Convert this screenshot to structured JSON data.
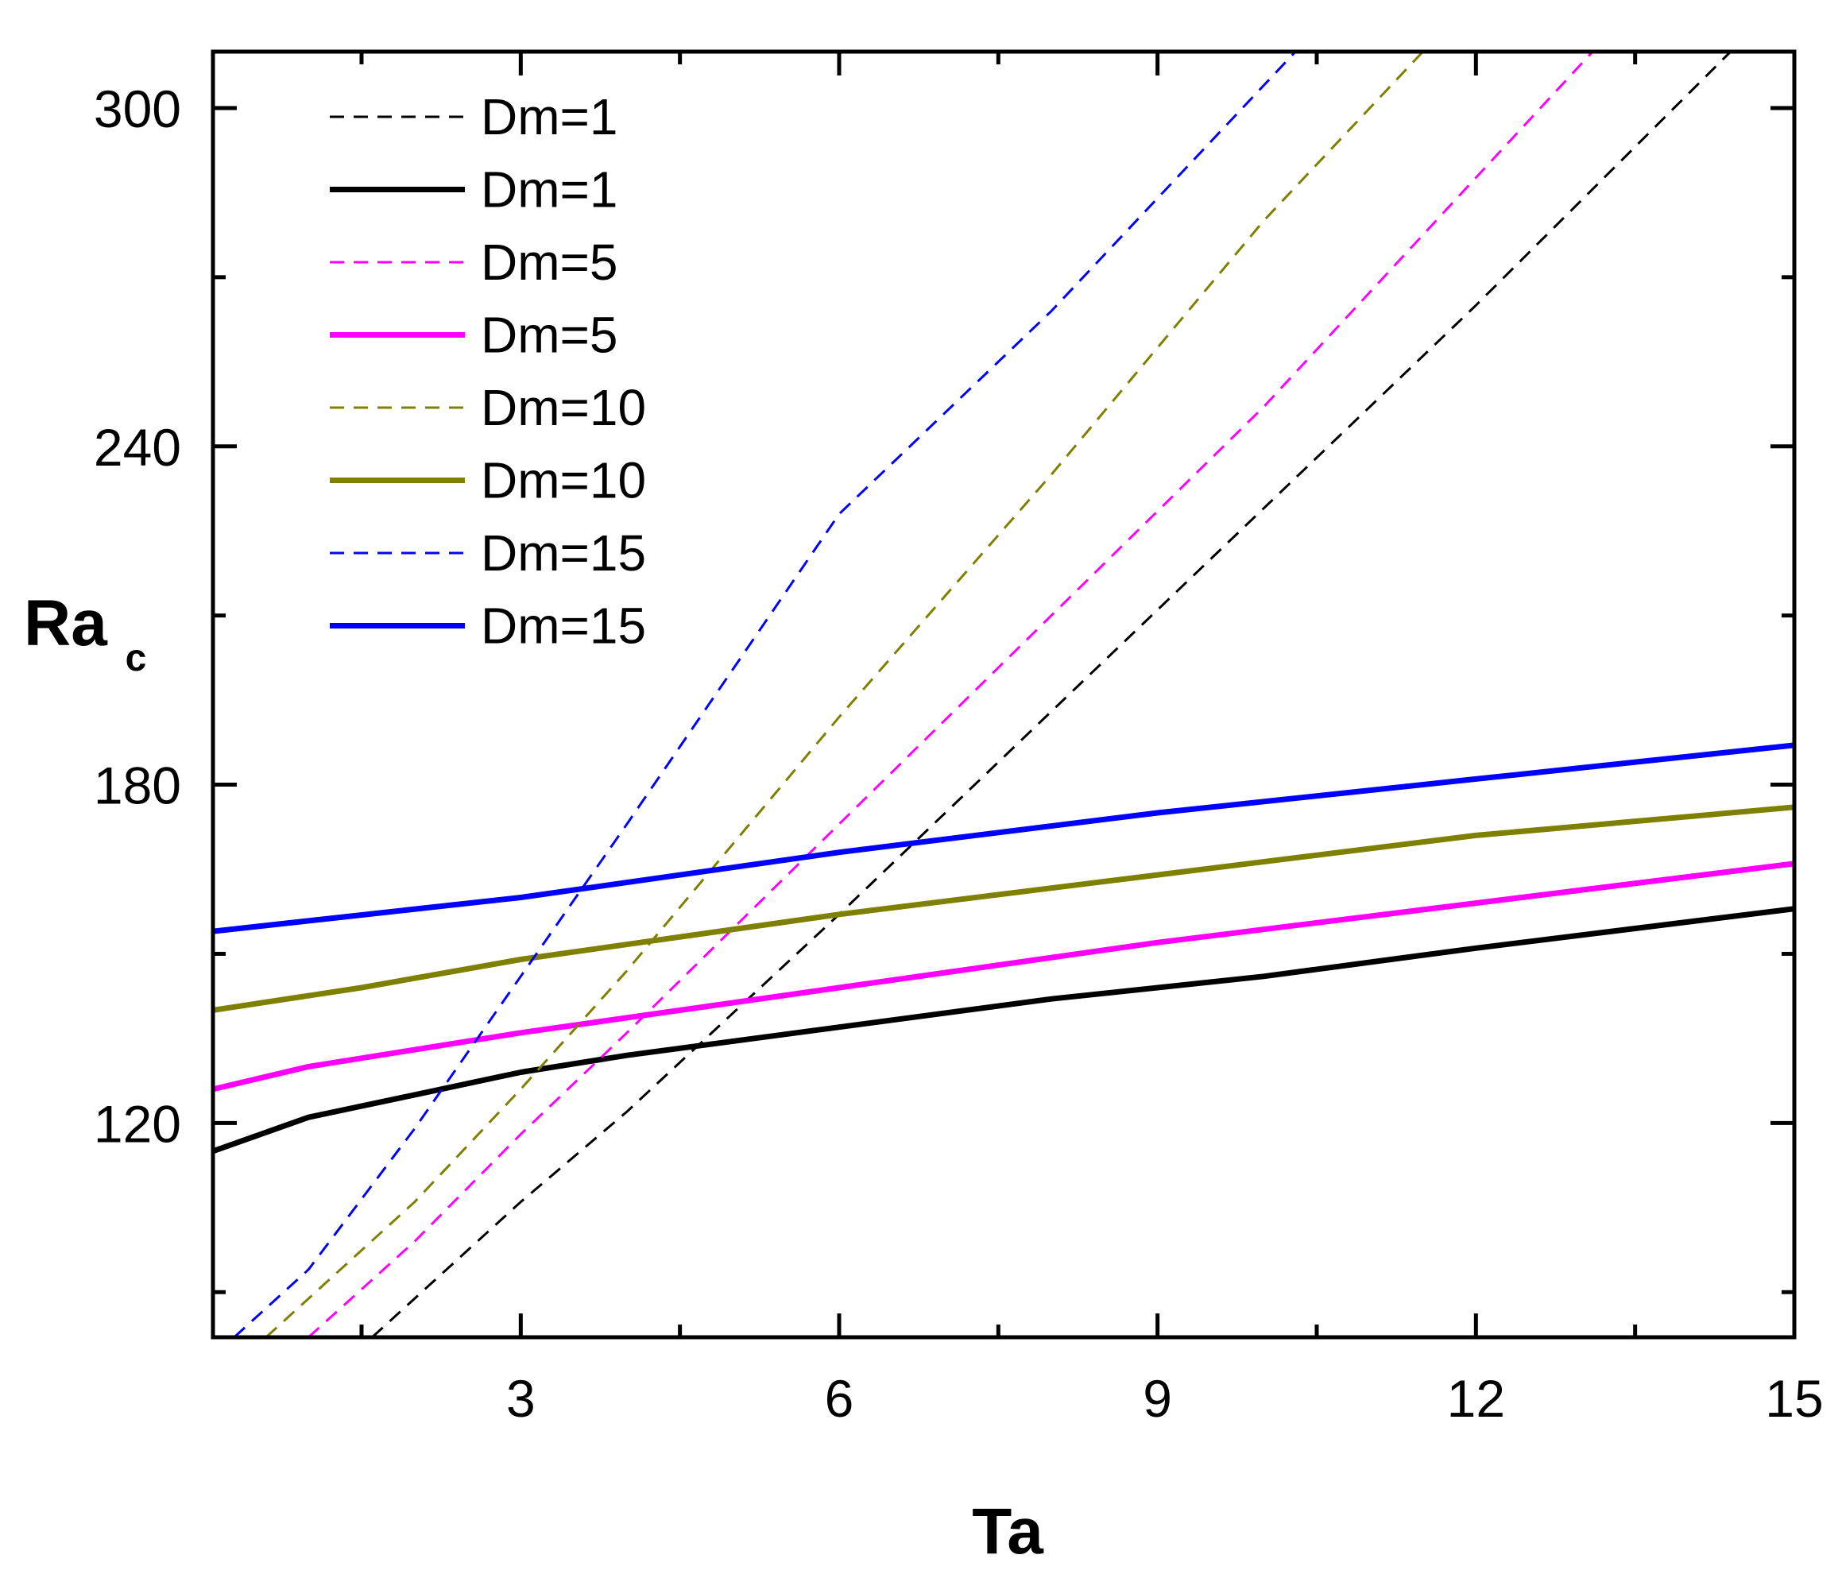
{
  "chart_data": {
    "type": "line",
    "title": "",
    "xlabel": "Ta",
    "ylabel": "Ra",
    "ylabel_sub": "c",
    "xlim": [
      0.1,
      15
    ],
    "ylim": [
      82,
      310
    ],
    "xticks": [
      3,
      6,
      9,
      12,
      15
    ],
    "xtick_labels": [
      "3",
      "6",
      "9",
      "12",
      "15"
    ],
    "yticks": [
      120,
      180,
      240,
      300
    ],
    "ytick_labels": [
      "120",
      "180",
      "240",
      "300"
    ],
    "grid": false,
    "legend_position": "top-left",
    "series": [
      {
        "name": "Dm=1",
        "style": "dashed",
        "color": "#000000",
        "x": [
          1.6,
          3,
          4,
          6,
          8,
          10,
          12,
          14.4
        ],
        "y": [
          82,
          106,
          122,
          157,
          193,
          229,
          265,
          310
        ]
      },
      {
        "name": "Dm=1",
        "style": "solid",
        "color": "#000000",
        "x": [
          0.1,
          1,
          2,
          3,
          4,
          6,
          8,
          10,
          12,
          15
        ],
        "y": [
          115,
          121,
          125,
          129,
          132,
          137,
          142,
          146,
          151,
          158
        ]
      },
      {
        "name": "Dm=5",
        "style": "dashed",
        "color": "#ff00ff",
        "x": [
          1,
          2,
          3,
          4,
          6,
          8,
          10,
          13.1
        ],
        "y": [
          82,
          99,
          118,
          136,
          173,
          210,
          247,
          310
        ]
      },
      {
        "name": "Dm=5",
        "style": "solid",
        "color": "#ff00ff",
        "x": [
          0.1,
          1,
          3,
          6,
          9,
          12,
          15
        ],
        "y": [
          126,
          130,
          136,
          144,
          152,
          159,
          166
        ]
      },
      {
        "name": "Dm=10",
        "style": "dashed",
        "color": "#808000",
        "x": [
          0.6,
          2,
          3,
          4,
          6,
          8,
          10,
          11.5
        ],
        "y": [
          82,
          106,
          126,
          147,
          192,
          235,
          280,
          310
        ]
      },
      {
        "name": "Dm=10",
        "style": "solid",
        "color": "#808000",
        "x": [
          0.1,
          1.5,
          3,
          6,
          9,
          12,
          15
        ],
        "y": [
          140,
          144,
          149,
          157,
          164,
          171,
          176
        ]
      },
      {
        "name": "Dm=15",
        "style": "dashed",
        "color": "#0000ff",
        "x": [
          0.3,
          1,
          2,
          3,
          4,
          6,
          8,
          10.3
        ],
        "y": [
          82,
          94,
          119,
          146,
          173,
          228,
          264,
          310
        ]
      },
      {
        "name": "Dm=15",
        "style": "solid",
        "color": "#0000ff",
        "x": [
          0.1,
          3,
          6,
          9,
          12,
          15
        ],
        "y": [
          154,
          160,
          168,
          175,
          181,
          187
        ]
      }
    ]
  }
}
